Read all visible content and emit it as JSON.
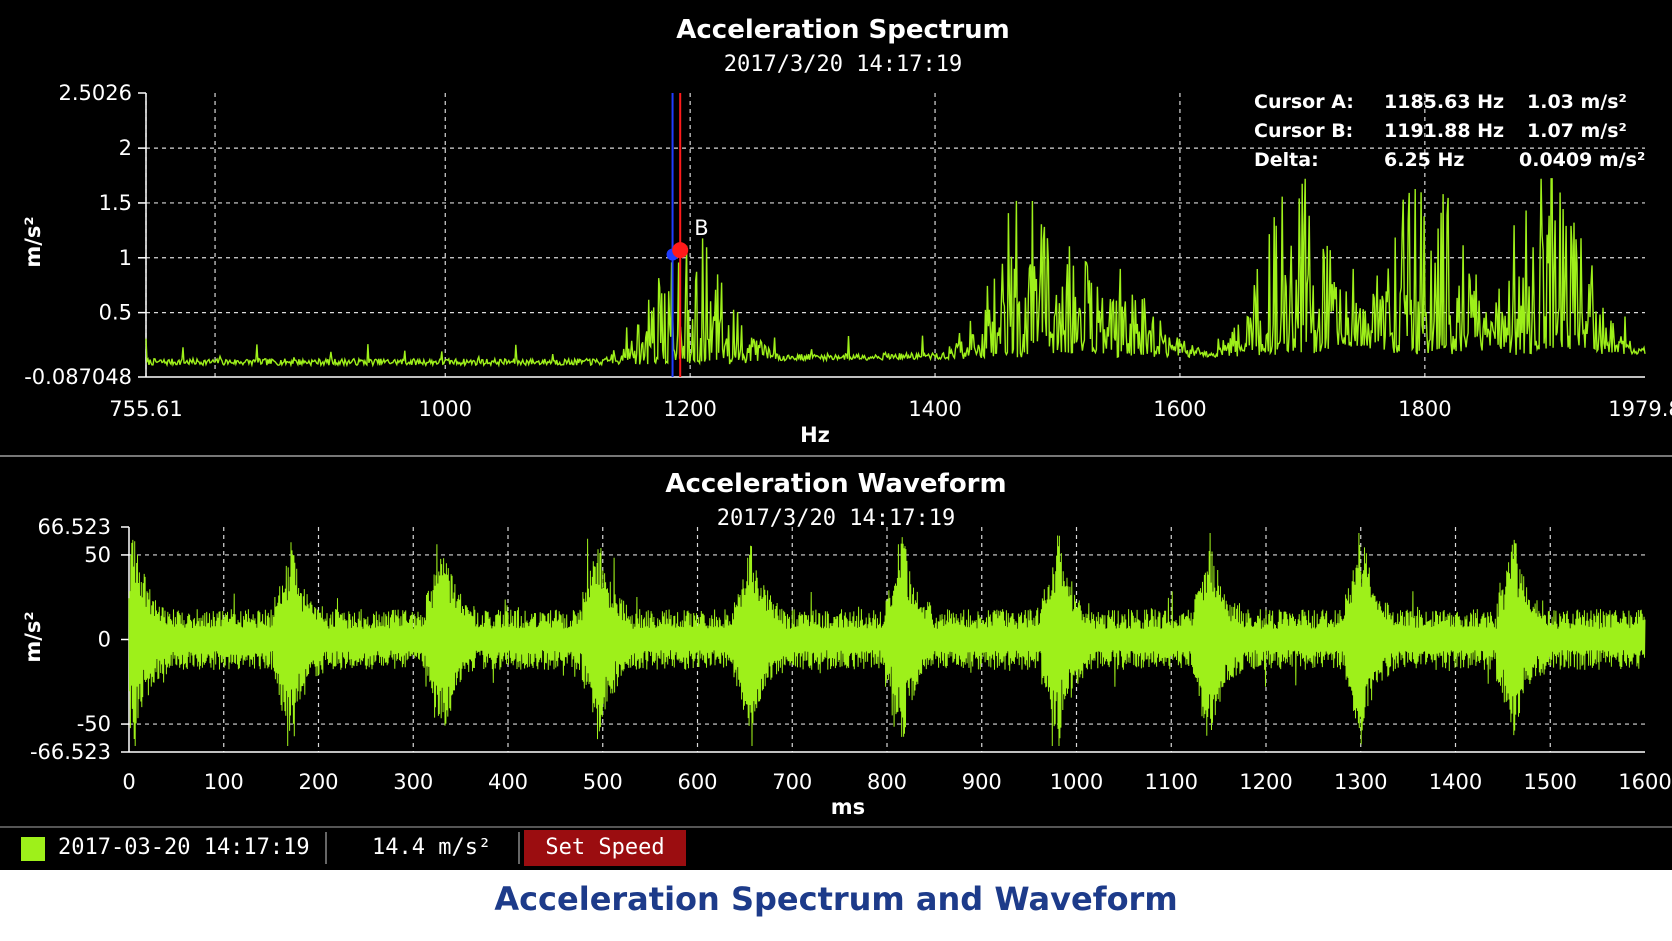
{
  "colors": {
    "signal": "#9ef01a",
    "cursor_a": "#1f3cff",
    "cursor_b": "#ff1a1a",
    "caption": "#1d3b8a",
    "speed_button": "#9b0d10"
  },
  "spectrum": {
    "title": "Acceleration Spectrum",
    "timestamp": "2017/3/20  14:17:19",
    "ylabel": "m/s²",
    "xlabel": "Hz",
    "y_ticks": [
      "2.5026",
      "2",
      "1.5",
      "1",
      "0.5",
      "-0.087048"
    ],
    "x_ticks": [
      "755.61",
      "1000",
      "1200",
      "1400",
      "1600",
      "1800",
      "1979.8"
    ],
    "cursor_b_label": "B",
    "readout": {
      "cursor_a_label": "Cursor A:",
      "cursor_a_freq": "1185.63  Hz",
      "cursor_a_amp": "1.03  m/s²",
      "cursor_b_label": "Cursor B:",
      "cursor_b_freq": "1191.88  Hz",
      "cursor_b_amp": "1.07  m/s²",
      "delta_label": "Delta:",
      "delta_freq": "6.25  Hz",
      "delta_amp": "0.0409  m/s²"
    }
  },
  "waveform": {
    "title": "Acceleration Waveform",
    "timestamp": "2017/3/20  14:17:19",
    "ylabel": "m/s²",
    "xlabel": "ms",
    "y_ticks": [
      "66.523",
      "50",
      "0",
      "-50",
      "-66.523"
    ],
    "x_ticks": [
      "0",
      "100",
      "200",
      "300",
      "400",
      "500",
      "600",
      "700",
      "800",
      "900",
      "1000",
      "1100",
      "1200",
      "1300",
      "1400",
      "1500",
      "1600"
    ]
  },
  "statusbar": {
    "legend_time": "2017-03-20  14:17:19",
    "rms_value": "14.4  m/s²",
    "set_speed_label": "Set Speed"
  },
  "caption": "Acceleration Spectrum and Waveform",
  "chart_data": [
    {
      "type": "line",
      "title": "Acceleration Spectrum",
      "xlabel": "Hz",
      "ylabel": "m/s²",
      "xlim": [
        755.61,
        1979.8
      ],
      "ylim": [
        -0.087048,
        2.5026
      ],
      "grid": true,
      "cursors": [
        {
          "name": "Cursor A",
          "x": 1185.63,
          "y": 1.03
        },
        {
          "name": "Cursor B",
          "x": 1191.88,
          "y": 1.07
        }
      ],
      "peak_clusters": [
        {
          "center_hz": 1200,
          "peak": 1.07
        },
        {
          "center_hz": 1480,
          "peak": 1.55
        },
        {
          "center_hz": 1550,
          "peak": 0.72
        },
        {
          "center_hz": 1700,
          "peak": 1.7
        },
        {
          "center_hz": 1800,
          "peak": 1.7
        },
        {
          "center_hz": 1900,
          "peak": 1.7
        }
      ],
      "noise_floor": 0.02
    },
    {
      "type": "line",
      "title": "Acceleration Waveform",
      "xlabel": "ms",
      "ylabel": "m/s²",
      "xlim": [
        0,
        1600
      ],
      "ylim": [
        -66.523,
        66.523
      ],
      "grid": true,
      "burst_times_ms": [
        0,
        165,
        325,
        490,
        650,
        810,
        975,
        1135,
        1295,
        1455
      ],
      "burst_amplitude": 55,
      "noise_amplitude": 18
    }
  ]
}
